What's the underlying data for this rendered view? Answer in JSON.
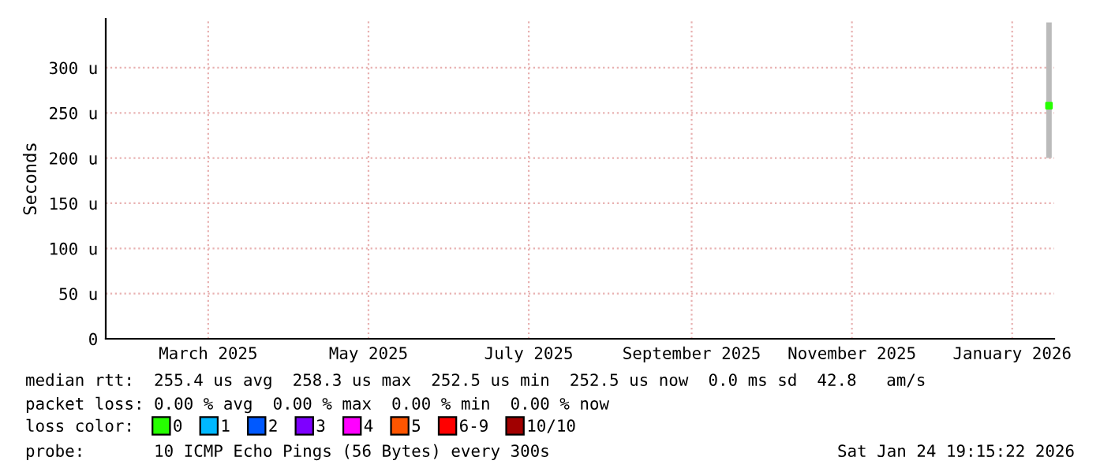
{
  "chart_data": {
    "type": "scatter",
    "ylabel": "Seconds",
    "x": [
      "2026-01-24"
    ],
    "xlim": [
      "2025-01-30",
      "2026-01-26"
    ],
    "xticks": [
      {
        "value": "2025-03-10",
        "label": "March 2025"
      },
      {
        "value": "2025-05-10",
        "label": "May 2025"
      },
      {
        "value": "2025-07-10",
        "label": "July 2025"
      },
      {
        "value": "2025-09-10",
        "label": "September 2025"
      },
      {
        "value": "2025-11-10",
        "label": "November 2025"
      },
      {
        "value": "2026-01-10",
        "label": "January 2026"
      }
    ],
    "ylim": [
      0,
      354
    ],
    "yticks": [
      0,
      {
        "value": 50,
        "label": "50 u"
      },
      {
        "value": 100,
        "label": "100 u"
      },
      {
        "value": 150,
        "label": "150 u"
      },
      {
        "value": 200,
        "label": "200 u"
      },
      {
        "value": 250,
        "label": "250 u"
      },
      {
        "value": 300,
        "label": "300 u"
      }
    ],
    "grid": true,
    "legend": "bottom",
    "legend_title": "loss color:",
    "marker": "square",
    "series": [
      {
        "name": "0",
        "color": "#26ff00",
        "values": [
          258
        ],
        "errors": [
          [
            200,
            350
          ]
        ]
      },
      {
        "name": "1",
        "color": "#00b8ff",
        "values": [
          null
        ]
      },
      {
        "name": "2",
        "color": "#0059ff",
        "values": [
          null
        ]
      },
      {
        "name": "3",
        "color": "#7e00ff",
        "values": [
          null
        ]
      },
      {
        "name": "4",
        "color": "#ff00ff",
        "values": [
          null
        ]
      },
      {
        "name": "5",
        "color": "#ff5500",
        "values": [
          null
        ]
      },
      {
        "name": "6-9",
        "color": "#ff0000",
        "values": [
          null
        ]
      },
      {
        "name": "10/10",
        "color": "#a10000",
        "values": [
          null
        ]
      }
    ],
    "annotations": [
      "median rtt:  255.4 us avg  258.3 us max  252.5 us min  252.5 us now  0.0 ms sd  42.8   am/s",
      "packet loss: 0.00 % avg  0.00 % max  0.00 % min  0.00 % now",
      "probe:       10 ICMP Echo Pings (56 Bytes) every 300s",
      "Sat Jan 24 19:15:22 2026"
    ]
  }
}
